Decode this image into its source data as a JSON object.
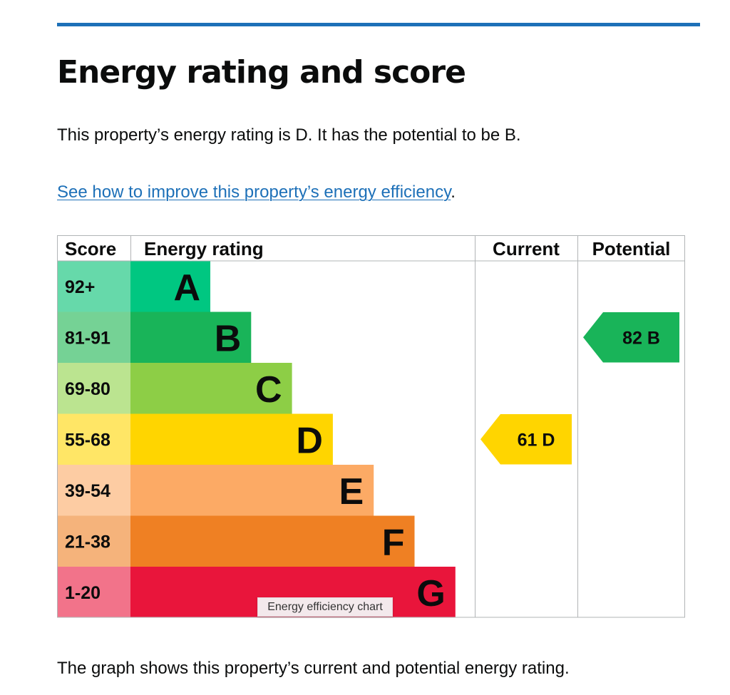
{
  "page": {
    "heading": "Energy rating and score",
    "summary": "This property’s energy rating is D. It has the potential to be B.",
    "improve_link": "See how to improve this property’s energy efficiency",
    "improve_suffix": ".",
    "tooltip": "Energy efficiency chart",
    "caption": "The graph shows this property’s current and potential energy rating."
  },
  "colors": {
    "rule": "#1d70b8",
    "link": "#1d70b8",
    "grid": "#b1b4b6"
  },
  "chart_data": {
    "type": "bar",
    "headers": {
      "score": "Score",
      "rating": "Energy rating",
      "current": "Current",
      "potential": "Potential"
    },
    "bands": [
      {
        "letter": "A",
        "score_range": "92+",
        "min": 92,
        "bar_color": "#00c781",
        "score_bg": "#66d9aa"
      },
      {
        "letter": "B",
        "score_range": "81-91",
        "min": 81,
        "bar_color": "#19b459",
        "score_bg": "#75d295"
      },
      {
        "letter": "C",
        "score_range": "69-80",
        "min": 69,
        "bar_color": "#8dce46",
        "score_bg": "#bbe490"
      },
      {
        "letter": "D",
        "score_range": "55-68",
        "min": 55,
        "bar_color": "#ffd500",
        "score_bg": "#ffe666"
      },
      {
        "letter": "E",
        "score_range": "39-54",
        "min": 39,
        "bar_color": "#fcaa65",
        "score_bg": "#fdcca3"
      },
      {
        "letter": "F",
        "score_range": "21-38",
        "min": 21,
        "bar_color": "#ef8023",
        "score_bg": "#f5b37b"
      },
      {
        "letter": "G",
        "score_range": "1-20",
        "min": 1,
        "bar_color": "#e9153b",
        "score_bg": "#f2738a"
      }
    ],
    "current": {
      "score": 61,
      "band": "D",
      "label": "61  D"
    },
    "potential": {
      "score": 82,
      "band": "B",
      "label": "82  B"
    }
  }
}
